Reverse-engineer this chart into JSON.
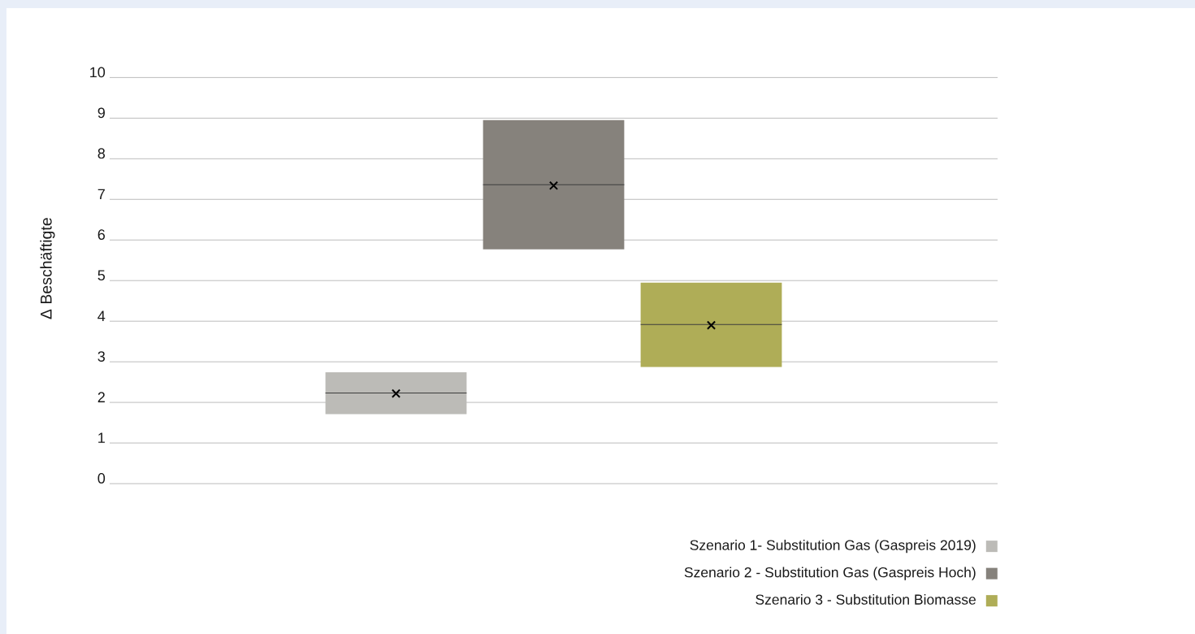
{
  "chart_data": {
    "type": "box",
    "ylabel": "Δ Beschäftigte",
    "categories": [
      null
    ],
    "series": [
      {
        "name": "Szenario 1- Substitution Gas (Gaspreis 2019)",
        "color": "#bcbbb7",
        "boxes": [
          {
            "q1": 1.71,
            "median": 2.23,
            "q3": 2.74,
            "mean": 2.22
          }
        ]
      },
      {
        "name": "Szenario 2 - Substitution Gas (Gaspreis Hoch)",
        "color": "#86827c",
        "boxes": [
          {
            "q1": 5.77,
            "median": 7.36,
            "q3": 8.95,
            "mean": 7.34
          }
        ]
      },
      {
        "name": "Szenario 3 - Substitution Biomasse",
        "color": "#afad57",
        "boxes": [
          {
            "q1": 2.87,
            "median": 3.92,
            "q3": 4.95,
            "mean": 3.9
          }
        ]
      }
    ],
    "ylim": [
      0,
      10
    ],
    "yticks": [
      0,
      1,
      2,
      3,
      4,
      5,
      6,
      7,
      8,
      9,
      10
    ],
    "grid": "y",
    "legend": "bottom right",
    "marker": "cross"
  }
}
